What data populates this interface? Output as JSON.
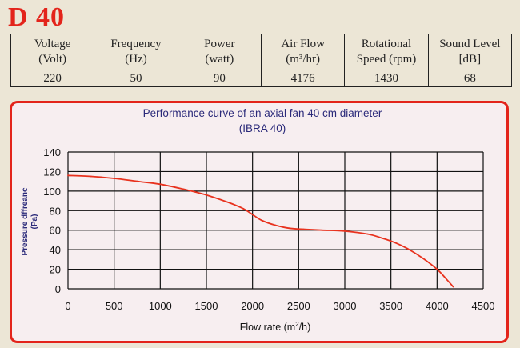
{
  "model": "D 40",
  "specs": {
    "headers": [
      [
        "Voltage",
        "(Volt)"
      ],
      [
        "Frequency",
        "(Hz)"
      ],
      [
        "Power",
        "(watt)"
      ],
      [
        "Air Flow",
        "(m³/hr)"
      ],
      [
        "Rotational",
        "Speed (rpm)"
      ],
      [
        "Sound Level",
        "[dB]"
      ]
    ],
    "values": [
      "220",
      "50",
      "90",
      "4176",
      "1430",
      "68"
    ]
  },
  "colors": {
    "title": "#e3241b",
    "frame": "#e3241b",
    "curve": "#e8321e",
    "chart_title": "#2b2a7a",
    "axis_text": "#111111"
  },
  "chart_data": {
    "type": "line",
    "title": "Performance curve of an axial fan 40 cm diameter",
    "subtitle": "(IBRA 40)",
    "xlabel": "Flow rate (m³/h)",
    "ylabel_lines": [
      "Pressure dffreanc",
      "(Pa)"
    ],
    "xlim": [
      0,
      4500
    ],
    "ylim": [
      0,
      140
    ],
    "xticks": [
      0,
      500,
      1000,
      1500,
      2000,
      2500,
      3000,
      3500,
      4000,
      4500
    ],
    "yticks": [
      0,
      20,
      40,
      60,
      80,
      100,
      120,
      140
    ],
    "grid": true,
    "series": [
      {
        "x": [
          0,
          250,
          500,
          750,
          1000,
          1250,
          1500,
          1750,
          1900,
          2000,
          2100,
          2250,
          2400,
          2550,
          2750,
          3000,
          3250,
          3400,
          3550,
          3700,
          3850,
          4000,
          4100,
          4176
        ],
        "y": [
          116,
          115,
          113,
          110,
          107,
          102,
          96,
          88,
          82,
          76,
          70,
          65,
          62,
          61,
          60,
          59,
          56,
          52,
          47,
          40,
          31,
          20,
          10,
          2
        ]
      }
    ]
  }
}
